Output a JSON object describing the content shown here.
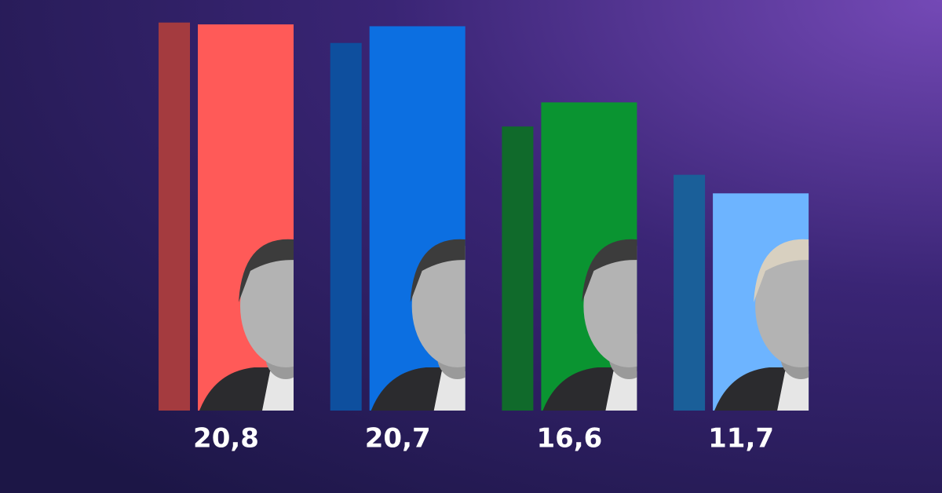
{
  "chart_data": {
    "type": "bar",
    "series": [
      {
        "colors": [
          "#a43b3f",
          "#0e4f9e",
          "#106a2b",
          "#1a5f99"
        ],
        "values": [
          20.9,
          19.8,
          15.3,
          12.7
        ]
      },
      {
        "colors": [
          "#ff5a58",
          "#0c6fe1",
          "#0a9431",
          "#6db4ff"
        ],
        "values": [
          20.8,
          20.7,
          16.6,
          11.7
        ],
        "value_labels": [
          "20,8",
          "20,7",
          "16,6",
          "11,7"
        ]
      }
    ]
  }
}
